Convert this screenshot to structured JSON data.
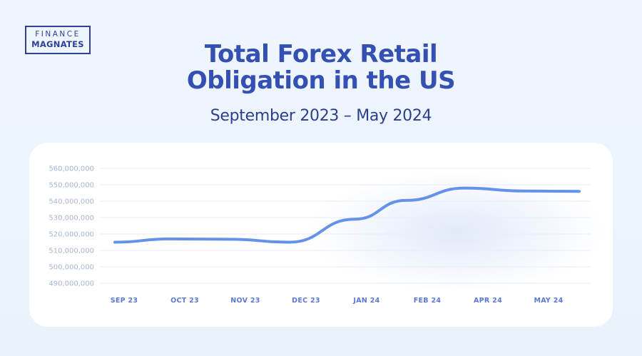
{
  "logo": {
    "line1": "FINANCE",
    "line2": "MAGNATES"
  },
  "header": {
    "title_line1": "Total Forex Retail",
    "title_line2": "Obligation in the US",
    "subtitle": "September 2023 – May 2024"
  },
  "colors": {
    "background": "#eef5fd",
    "title": "#3550b3",
    "line": "#6492e8",
    "grid": "#e6eef9",
    "axis_text": "#a8b5cf",
    "x_tick_text": "#5b78d6"
  },
  "chart_data": {
    "type": "line",
    "title": "Total Forex Retail Obligation in the US",
    "subtitle": "September 2023 – May 2024",
    "xlabel": "",
    "ylabel": "",
    "categories": [
      "SEP 23",
      "OCT 23",
      "NOV 23",
      "DEC 23",
      "JAN 24",
      "FEB 24",
      "APR 24",
      "MAY 24"
    ],
    "y_ticks": [
      "560,000,000",
      "550,000,000",
      "540,000,000",
      "530,000,000",
      "520,000,000",
      "510,000,000",
      "500,000,000",
      "490,000,000"
    ],
    "ylim": [
      490000000,
      560000000
    ],
    "grid": true,
    "series": [
      {
        "name": "",
        "color": "#6492e8",
        "points": [
          {
            "x": "SEP 23",
            "y": 515000000
          },
          {
            "x": "OCT 23",
            "y": 517000000
          },
          {
            "x": "NOV 23",
            "y": 516800000
          },
          {
            "x": "NOV 23–DEC 23",
            "y": 515000000
          },
          {
            "x": "DEC 23–JAN 24",
            "y": 529000000
          },
          {
            "x": "JAN 24–FEB 24",
            "y": 540500000
          },
          {
            "x": "FEB 24–APR 24",
            "y": 548000000
          },
          {
            "x": "APR 24–MAY 24",
            "y": 546200000
          },
          {
            "x": "MAY 24+",
            "y": 546000000
          }
        ]
      }
    ]
  }
}
